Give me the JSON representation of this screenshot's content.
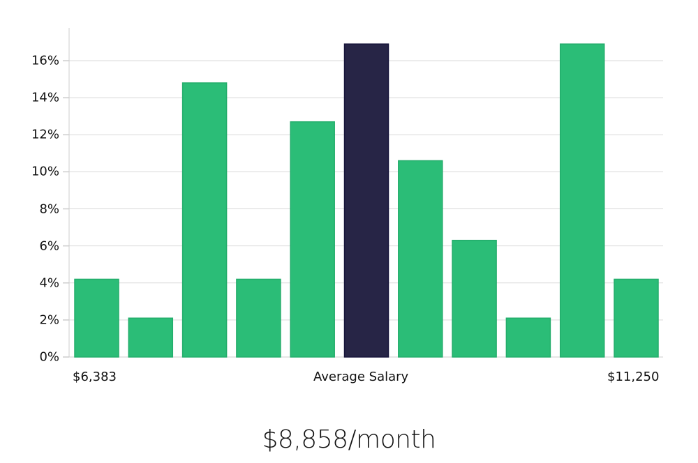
{
  "chart_data": {
    "type": "bar",
    "title": "",
    "subtitle": "$8,858/month",
    "xlabel": "Average Salary",
    "ylabel": "",
    "x_range_labels": {
      "min": "$6,383",
      "center": "Average Salary",
      "max": "$11,250"
    },
    "categories": [
      "bin1",
      "bin2",
      "bin3",
      "bin4",
      "bin5",
      "bin6",
      "bin7",
      "bin8",
      "bin9",
      "bin10",
      "bin11"
    ],
    "values": [
      4.2,
      2.1,
      14.8,
      4.2,
      12.7,
      16.9,
      10.6,
      6.3,
      2.1,
      16.9,
      4.2
    ],
    "highlight_index": 5,
    "y_ticks": [
      "0%",
      "2%",
      "4%",
      "6%",
      "8%",
      "10%",
      "12%",
      "14%",
      "16%"
    ],
    "ylim": [
      0,
      17.7
    ],
    "grid": true,
    "legend": "none",
    "colors": {
      "bar": "#2bbd77",
      "bar_edge": "#23ad6b",
      "highlight": "#272546",
      "highlight_edge": "#16143a",
      "grid": "#d9d9d9",
      "axis": "#cccccc"
    }
  },
  "labels": {
    "min": "$6,383",
    "center": "Average Salary",
    "max": "$11,250",
    "subtitle": "$8,858/month"
  }
}
